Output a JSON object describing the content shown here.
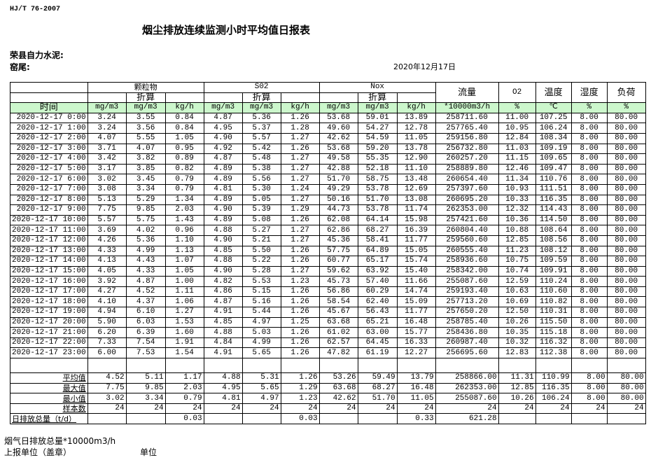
{
  "standard": "HJ/T  76-2007",
  "title": "烟尘排放连续监测小时平均值日报表",
  "company": "荣县自力水泥:",
  "kiln": "窑尾:",
  "date": "2020年12月17日",
  "header": {
    "particulate": "颗粒物",
    "so2": "S02",
    "nox": "Nox",
    "converted": "折算",
    "flow": "流量",
    "o2": "O2",
    "temperature": "温度",
    "humidity": "湿度",
    "load": "负荷",
    "time": "时间",
    "units": [
      "mg/m3",
      "mg/m3",
      "kg/h",
      "mg/m3",
      "mg/m3",
      "kg/h",
      "mg/m3",
      "mg/m3",
      "kg/h",
      "*10000m3/h",
      "%",
      "℃",
      "%",
      "%"
    ]
  },
  "unit_row_color": "#ccf7cc",
  "rows": [
    [
      "2020-12-17 0:00",
      "3.24",
      "3.55",
      "0.84",
      "4.87",
      "5.36",
      "1.26",
      "53.68",
      "59.01",
      "13.89",
      "258711.60",
      "11.00",
      "107.25",
      "8.00",
      "80.00"
    ],
    [
      "2020-12-17 1:00",
      "3.24",
      "3.56",
      "0.84",
      "4.95",
      "5.37",
      "1.28",
      "49.60",
      "54.27",
      "12.78",
      "257765.40",
      "10.95",
      "106.24",
      "8.00",
      "80.00"
    ],
    [
      "2020-12-17 2:00",
      "4.07",
      "5.55",
      "1.05",
      "4.90",
      "5.57",
      "1.27",
      "42.62",
      "54.59",
      "11.05",
      "259156.80",
      "12.84",
      "108.34",
      "8.00",
      "80.00"
    ],
    [
      "2020-12-17 3:00",
      "3.71",
      "4.07",
      "0.95",
      "4.92",
      "5.42",
      "1.26",
      "53.68",
      "59.20",
      "13.78",
      "256732.80",
      "11.03",
      "109.19",
      "8.00",
      "80.00"
    ],
    [
      "2020-12-17 4:00",
      "3.42",
      "3.82",
      "0.89",
      "4.87",
      "5.48",
      "1.27",
      "49.58",
      "55.35",
      "12.90",
      "260257.20",
      "11.15",
      "109.65",
      "8.00",
      "80.00"
    ],
    [
      "2020-12-17 5:00",
      "3.17",
      "3.85",
      "0.82",
      "4.89",
      "5.38",
      "1.27",
      "42.88",
      "52.18",
      "11.10",
      "258889.80",
      "12.46",
      "109.47",
      "8.00",
      "80.00"
    ],
    [
      "2020-12-17 6:00",
      "3.02",
      "3.45",
      "0.79",
      "4.89",
      "5.56",
      "1.27",
      "51.70",
      "58.75",
      "13.48",
      "260654.40",
      "11.34",
      "110.76",
      "8.00",
      "80.00"
    ],
    [
      "2020-12-17 7:00",
      "3.08",
      "3.34",
      "0.79",
      "4.81",
      "5.30",
      "1.24",
      "49.29",
      "53.78",
      "12.69",
      "257397.60",
      "10.93",
      "111.51",
      "8.00",
      "80.00"
    ],
    [
      "2020-12-17 8:00",
      "5.13",
      "5.29",
      "1.34",
      "4.89",
      "5.05",
      "1.27",
      "50.16",
      "51.70",
      "13.08",
      "260695.20",
      "10.33",
      "116.35",
      "8.00",
      "80.00"
    ],
    [
      "2020-12-17 9:00",
      "7.75",
      "9.85",
      "2.03",
      "4.90",
      "5.39",
      "1.29",
      "44.73",
      "53.78",
      "11.74",
      "262353.00",
      "12.32",
      "114.43",
      "8.00",
      "80.00"
    ],
    [
      "2020-12-17 10:00",
      "5.57",
      "5.75",
      "1.43",
      "4.89",
      "5.08",
      "1.26",
      "62.08",
      "64.14",
      "15.98",
      "257421.60",
      "10.36",
      "114.50",
      "8.00",
      "80.00"
    ],
    [
      "2020-12-17 11:00",
      "3.69",
      "4.02",
      "0.96",
      "4.88",
      "5.27",
      "1.27",
      "62.86",
      "68.27",
      "16.39",
      "260804.40",
      "10.88",
      "108.64",
      "8.00",
      "80.00"
    ],
    [
      "2020-12-17 12:00",
      "4.26",
      "5.36",
      "1.10",
      "4.90",
      "5.21",
      "1.27",
      "45.36",
      "58.41",
      "11.77",
      "259560.60",
      "12.85",
      "108.56",
      "8.00",
      "80.00"
    ],
    [
      "2020-12-17 13:00",
      "4.33",
      "4.99",
      "1.13",
      "4.85",
      "5.50",
      "1.26",
      "57.75",
      "64.89",
      "15.05",
      "260555.40",
      "11.23",
      "108.12",
      "8.00",
      "80.00"
    ],
    [
      "2020-12-17 14:00",
      "4.13",
      "4.43",
      "1.07",
      "4.88",
      "5.22",
      "1.26",
      "60.77",
      "65.17",
      "15.74",
      "258936.60",
      "10.75",
      "109.59",
      "8.00",
      "80.00"
    ],
    [
      "2020-12-17 15:00",
      "4.05",
      "4.33",
      "1.05",
      "4.90",
      "5.28",
      "1.27",
      "59.62",
      "63.92",
      "15.40",
      "258342.00",
      "10.74",
      "109.91",
      "8.00",
      "80.00"
    ],
    [
      "2020-12-17 16:00",
      "3.92",
      "4.87",
      "1.00",
      "4.82",
      "5.53",
      "1.23",
      "45.73",
      "57.40",
      "11.66",
      "255087.60",
      "12.59",
      "110.24",
      "8.00",
      "80.00"
    ],
    [
      "2020-12-17 17:00",
      "4.27",
      "4.52",
      "1.11",
      "4.86",
      "5.15",
      "1.26",
      "56.86",
      "60.29",
      "14.74",
      "259193.40",
      "10.63",
      "110.60",
      "8.00",
      "80.00"
    ],
    [
      "2020-12-17 18:00",
      "4.10",
      "4.37",
      "1.06",
      "4.87",
      "5.16",
      "1.26",
      "58.54",
      "62.40",
      "15.09",
      "257713.20",
      "10.69",
      "110.82",
      "8.00",
      "80.00"
    ],
    [
      "2020-12-17 19:00",
      "4.94",
      "6.10",
      "1.27",
      "4.91",
      "5.44",
      "1.26",
      "45.67",
      "56.43",
      "11.77",
      "257650.20",
      "12.50",
      "110.31",
      "8.00",
      "80.00"
    ],
    [
      "2020-12-17 20:00",
      "5.90",
      "6.03",
      "1.53",
      "4.85",
      "4.97",
      "1.25",
      "63.68",
      "65.21",
      "16.48",
      "258785.40",
      "10.26",
      "115.50",
      "8.00",
      "80.00"
    ],
    [
      "2020-12-17 21:00",
      "6.20",
      "6.39",
      "1.60",
      "4.88",
      "5.03",
      "1.26",
      "61.02",
      "63.00",
      "15.77",
      "258436.80",
      "10.35",
      "115.18",
      "8.00",
      "80.00"
    ],
    [
      "2020-12-17 22:00",
      "7.33",
      "7.54",
      "1.91",
      "4.84",
      "4.99",
      "1.26",
      "62.57",
      "64.45",
      "16.33",
      "260987.40",
      "10.32",
      "116.32",
      "8.00",
      "80.00"
    ],
    [
      "2020-12-17 23:00",
      "6.00",
      "7.53",
      "1.54",
      "4.91",
      "5.65",
      "1.26",
      "47.82",
      "61.19",
      "12.27",
      "256695.60",
      "12.83",
      "112.38",
      "8.00",
      "80.00"
    ]
  ],
  "summary": [
    [
      "平均值",
      "4.52",
      "5.11",
      "1.17",
      "4.88",
      "5.31",
      "1.26",
      "53.26",
      "59.49",
      "13.79",
      "258866.00",
      "11.31",
      "110.99",
      "8.00",
      "80.00"
    ],
    [
      "最大值",
      "7.75",
      "9.85",
      "2.03",
      "4.95",
      "5.65",
      "1.29",
      "63.68",
      "68.27",
      "16.48",
      "262353.00",
      "12.85",
      "116.35",
      "8.00",
      "80.00"
    ],
    [
      "最小值",
      "3.02",
      "3.34",
      "0.79",
      "4.81",
      "4.97",
      "1.23",
      "42.62",
      "51.70",
      "11.05",
      "255087.60",
      "10.26",
      "106.24",
      "8.00",
      "80.00"
    ],
    [
      "样本数",
      "24",
      "24",
      "24",
      "24",
      "24",
      "24",
      "24",
      "24",
      "24",
      "24",
      "24",
      "24",
      "24",
      "24"
    ],
    [
      "日排放总量（t/d）",
      "",
      "",
      "0.03",
      "",
      "",
      "0.03",
      "",
      "",
      "0.33",
      "621.28",
      "",
      "",
      "",
      ""
    ]
  ],
  "footer": {
    "flue_total": "烟气日排放总量*10000m3/h",
    "reporting_unit": "上报单位（盖章）",
    "unit": "单位"
  }
}
